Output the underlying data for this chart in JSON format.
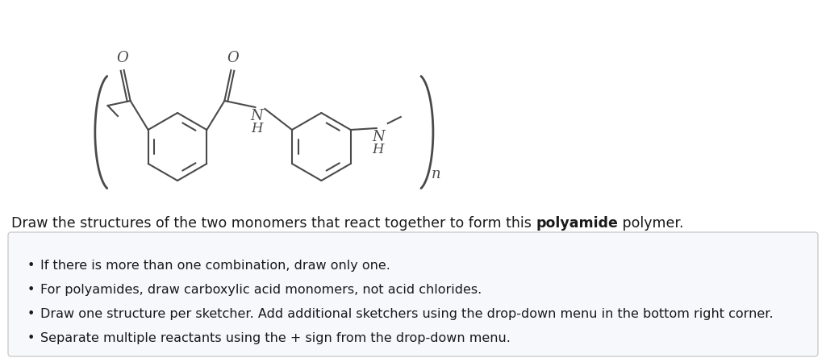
{
  "background_color": "#ffffff",
  "title_text": "Draw the structures of the two monomers that react together to form this ",
  "title_bold": "polyamide",
  "title_end": " polymer.",
  "bullet_points": [
    "If there is more than one combination, draw only one.",
    "For polyamides, draw carboxylic acid monomers, not acid chlorides.",
    "Draw one structure per sketcher. Add additional sketchers using the drop-down menu in the bottom right corner.",
    "Separate multiple reactants using the + sign from the drop-down menu."
  ],
  "box_border_color": "#cccccc",
  "box_fill_color": "#f7f8fc",
  "text_color": "#1a1a1a",
  "structure_color": "#4a4a4a",
  "font_size_body": 12.5,
  "font_size_bullet": 11.5
}
